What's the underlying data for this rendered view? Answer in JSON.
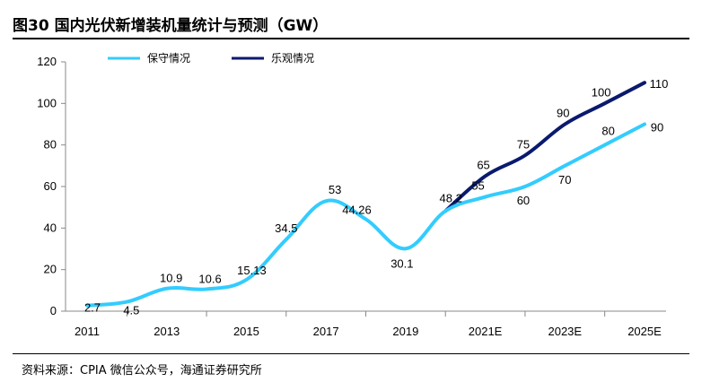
{
  "header": {
    "title": "图30 国内光伏新增装机量统计与预测（GW）"
  },
  "footer": {
    "source": "资料来源：CPIA 微信公众号，海通证券研究所"
  },
  "chart_data": {
    "type": "line",
    "title": "",
    "xlabel": "",
    "ylabel": "",
    "ylim": [
      0,
      120
    ],
    "yticks": [
      0,
      20,
      40,
      60,
      80,
      100,
      120
    ],
    "x": [
      2011,
      2012,
      2013,
      2014,
      2015,
      2016,
      2017,
      2018,
      2019,
      2020,
      2021,
      2022,
      2023,
      2024,
      2025
    ],
    "xtick_labels": [
      "2011",
      "2013",
      "2015",
      "2017",
      "2019",
      "2021E",
      "2023E",
      "2025E"
    ],
    "legend_position": "top-left",
    "grid": false,
    "series": [
      {
        "name": "保守情况",
        "color": "#33ccff",
        "values": [
          2.7,
          4.5,
          10.9,
          10.6,
          15.13,
          34.5,
          53,
          44.26,
          30.1,
          48.2,
          55,
          60,
          70,
          80,
          90
        ],
        "labels": [
          "2.7",
          "4.5",
          "10.9",
          "10.6",
          "15.13",
          "34.5",
          "53",
          "44.26",
          "30.1",
          "48.2",
          "55",
          "60",
          "70",
          "80",
          "90"
        ]
      },
      {
        "name": "乐观情况",
        "color": "#0a1a6e",
        "values": [
          null,
          null,
          null,
          null,
          null,
          null,
          null,
          null,
          null,
          48.2,
          65,
          75,
          90,
          100,
          110
        ],
        "labels": [
          "",
          "",
          "",
          "",
          "",
          "",
          "",
          "",
          "",
          "",
          "65",
          "75",
          "90",
          "100",
          "110"
        ]
      }
    ]
  }
}
